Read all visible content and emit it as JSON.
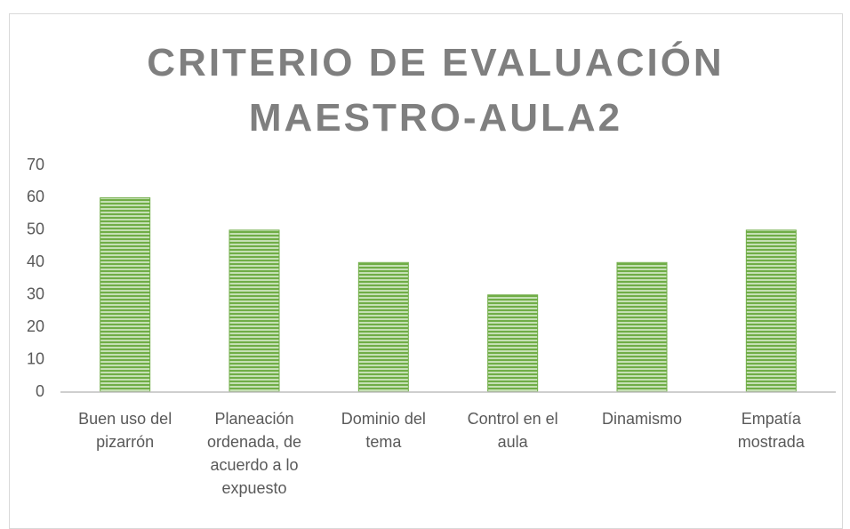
{
  "chart_data": {
    "type": "bar",
    "title": "CRITERIO DE EVALUACIÓN MAESTRO-AULA2",
    "categories": [
      "Buen uso del pizarrón",
      "Planeación ordenada, de acuerdo a lo expuesto",
      "Dominio del tema",
      "Control en el aula",
      "Dinamismo",
      "Empatía mostrada"
    ],
    "values": [
      60,
      50,
      40,
      30,
      40,
      50
    ],
    "color": "#70ad47",
    "ylim": [
      0,
      70
    ],
    "yticks": [
      0,
      10,
      20,
      30,
      40,
      50,
      60,
      70
    ],
    "grid": false
  }
}
